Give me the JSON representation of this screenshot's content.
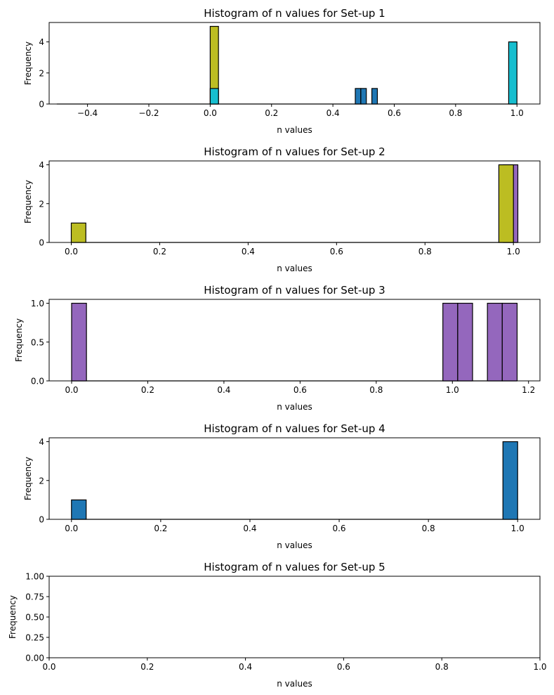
{
  "chart_data": [
    {
      "type": "bar",
      "title": "Histogram of n values for Set-up 1",
      "xlabel": "n values",
      "ylabel": "Frequency",
      "xlim": [
        -0.525,
        1.075
      ],
      "ylim": [
        0,
        5.25
      ],
      "xticks": [
        {
          "value": -0.4,
          "label": "−0.4"
        },
        {
          "value": -0.2,
          "label": "−0.2"
        },
        {
          "value": 0.0,
          "label": "0.0"
        },
        {
          "value": 0.2,
          "label": "0.2"
        },
        {
          "value": 0.4,
          "label": "0.4"
        },
        {
          "value": 0.6,
          "label": "0.6"
        },
        {
          "value": 0.8,
          "label": "0.8"
        },
        {
          "value": 1.0,
          "label": "1.0"
        }
      ],
      "yticks": [
        {
          "value": 0,
          "label": "0"
        },
        {
          "value": 2,
          "label": "2"
        },
        {
          "value": 4,
          "label": "4"
        }
      ],
      "baseline": [
        -0.5,
        1.0
      ],
      "bars": [
        {
          "x0": 0.0,
          "x1": 0.027,
          "value": 5,
          "color": "#bcbd22"
        },
        {
          "x0": 0.0,
          "x1": 0.027,
          "value": 1,
          "color": "#17becf"
        },
        {
          "x0": 0.473,
          "x1": 0.491,
          "value": 1,
          "color": "#1f77b4"
        },
        {
          "x0": 0.491,
          "x1": 0.509,
          "value": 1,
          "color": "#1f77b4"
        },
        {
          "x0": 0.527,
          "x1": 0.545,
          "value": 1,
          "color": "#1f77b4"
        },
        {
          "x0": 0.973,
          "x1": 1.0,
          "value": 4,
          "color": "#17becf"
        }
      ]
    },
    {
      "type": "bar",
      "title": "Histogram of n values for Set-up 2",
      "xlabel": "n values",
      "ylabel": "Frequency",
      "xlim": [
        -0.05,
        1.06
      ],
      "ylim": [
        0,
        4.2
      ],
      "xticks": [
        {
          "value": 0.0,
          "label": "0.0"
        },
        {
          "value": 0.2,
          "label": "0.2"
        },
        {
          "value": 0.4,
          "label": "0.4"
        },
        {
          "value": 0.6,
          "label": "0.6"
        },
        {
          "value": 0.8,
          "label": "0.8"
        },
        {
          "value": 1.0,
          "label": "1.0"
        }
      ],
      "yticks": [
        {
          "value": 0,
          "label": "0"
        },
        {
          "value": 2,
          "label": "2"
        },
        {
          "value": 4,
          "label": "4"
        }
      ],
      "baseline": [
        0.0,
        1.01
      ],
      "bars": [
        {
          "x0": 0.0,
          "x1": 0.033,
          "value": 1,
          "color": "#bcbd22"
        },
        {
          "x0": 0.977,
          "x1": 1.01,
          "value": 4,
          "color": "#9467bd"
        },
        {
          "x0": 0.967,
          "x1": 1.0,
          "value": 4,
          "color": "#bcbd22"
        }
      ]
    },
    {
      "type": "bar",
      "title": "Histogram of n values for Set-up 3",
      "xlabel": "n values",
      "ylabel": "Frequency",
      "xlim": [
        -0.059,
        1.23
      ],
      "ylim": [
        0,
        1.05
      ],
      "xticks": [
        {
          "value": 0.0,
          "label": "0.0"
        },
        {
          "value": 0.2,
          "label": "0.2"
        },
        {
          "value": 0.4,
          "label": "0.4"
        },
        {
          "value": 0.6,
          "label": "0.6"
        },
        {
          "value": 0.8,
          "label": "0.8"
        },
        {
          "value": 1.0,
          "label": "1.0"
        },
        {
          "value": 1.2,
          "label": "1.2"
        }
      ],
      "yticks": [
        {
          "value": 0.0,
          "label": "0.0"
        },
        {
          "value": 0.5,
          "label": "0.5"
        },
        {
          "value": 1.0,
          "label": "1.0"
        }
      ],
      "baseline": [
        0.0,
        1.17
      ],
      "bars": [
        {
          "x0": 0.0,
          "x1": 0.039,
          "value": 1,
          "color": "#9467bd"
        },
        {
          "x0": 0.975,
          "x1": 1.014,
          "value": 1,
          "color": "#9467bd"
        },
        {
          "x0": 1.014,
          "x1": 1.053,
          "value": 1,
          "color": "#9467bd"
        },
        {
          "x0": 1.092,
          "x1": 1.131,
          "value": 1,
          "color": "#9467bd"
        },
        {
          "x0": 1.131,
          "x1": 1.17,
          "value": 1,
          "color": "#9467bd"
        }
      ]
    },
    {
      "type": "bar",
      "title": "Histogram of n values for Set-up 4",
      "xlabel": "n values",
      "ylabel": "Frequency",
      "xlim": [
        -0.05,
        1.05
      ],
      "ylim": [
        0,
        4.2
      ],
      "xticks": [
        {
          "value": 0.0,
          "label": "0.0"
        },
        {
          "value": 0.2,
          "label": "0.2"
        },
        {
          "value": 0.4,
          "label": "0.4"
        },
        {
          "value": 0.6,
          "label": "0.6"
        },
        {
          "value": 0.8,
          "label": "0.8"
        },
        {
          "value": 1.0,
          "label": "1.0"
        }
      ],
      "yticks": [
        {
          "value": 0,
          "label": "0"
        },
        {
          "value": 2,
          "label": "2"
        },
        {
          "value": 4,
          "label": "4"
        }
      ],
      "baseline": [
        0.0,
        1.0
      ],
      "bars": [
        {
          "x0": 0.0,
          "x1": 0.033,
          "value": 1,
          "color": "#1f77b4"
        },
        {
          "x0": 0.967,
          "x1": 1.0,
          "value": 4,
          "color": "#1f77b4"
        }
      ]
    },
    {
      "type": "bar",
      "title": "Histogram of n values for Set-up 5",
      "xlabel": "n values",
      "ylabel": "Frequency",
      "xlim": [
        0.0,
        1.0
      ],
      "ylim": [
        0.0,
        1.0
      ],
      "xticks": [
        {
          "value": 0.0,
          "label": "0.0"
        },
        {
          "value": 0.2,
          "label": "0.2"
        },
        {
          "value": 0.4,
          "label": "0.4"
        },
        {
          "value": 0.6,
          "label": "0.6"
        },
        {
          "value": 0.8,
          "label": "0.8"
        },
        {
          "value": 1.0,
          "label": "1.0"
        }
      ],
      "yticks": [
        {
          "value": 0.0,
          "label": "0.00"
        },
        {
          "value": 0.25,
          "label": "0.25"
        },
        {
          "value": 0.5,
          "label": "0.50"
        },
        {
          "value": 0.75,
          "label": "0.75"
        },
        {
          "value": 1.0,
          "label": "1.00"
        }
      ],
      "baseline": null,
      "bars": []
    }
  ]
}
